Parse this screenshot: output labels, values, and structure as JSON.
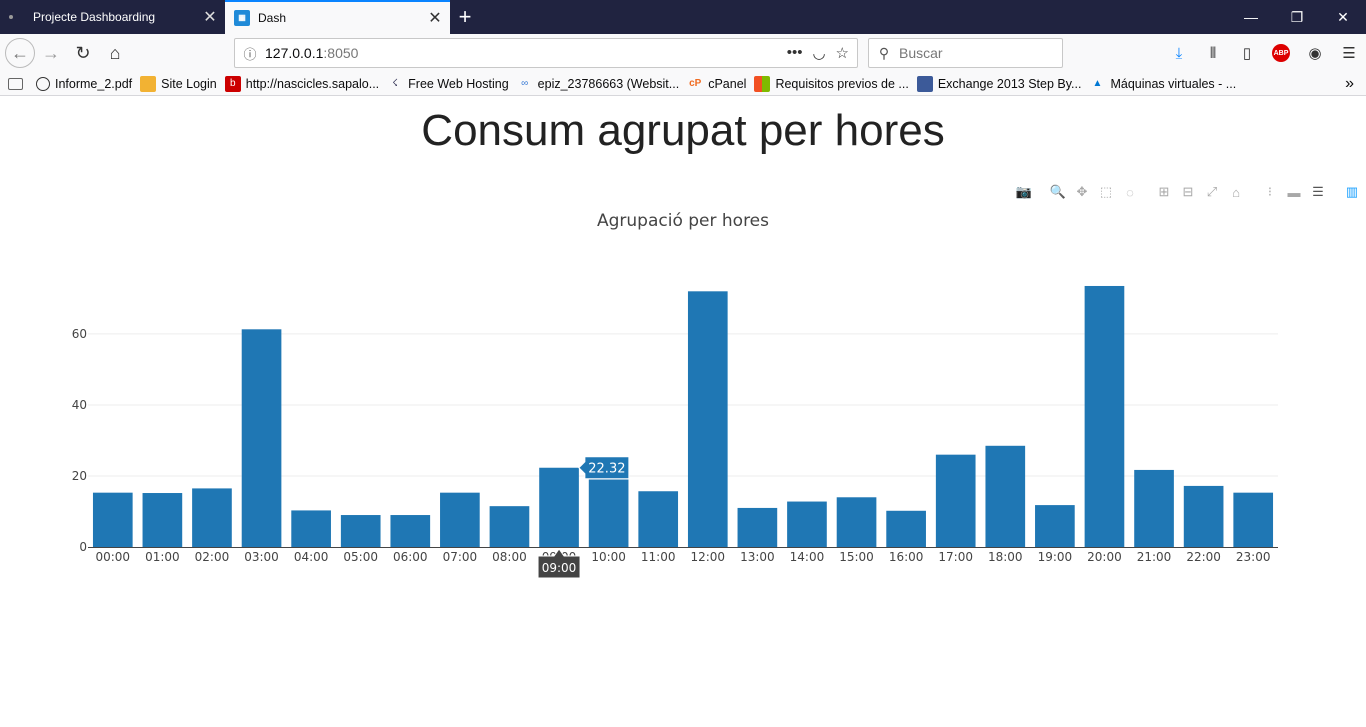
{
  "browser": {
    "tabs": [
      {
        "label": "Projecte Dashboarding",
        "active": false
      },
      {
        "label": "Dash",
        "active": true
      }
    ],
    "url_host": "127.0.0.1",
    "url_port": ":8050",
    "search_placeholder": "Buscar",
    "bookmarks": [
      {
        "label": "Informe_2.pdf",
        "icon": "globe-icon"
      },
      {
        "label": "Site Login",
        "icon": "box-icon"
      },
      {
        "label": "http://nascicles.sapalo...",
        "icon": "red-b-icon"
      },
      {
        "label": "Free Web Hosting",
        "icon": "hosting-icon"
      },
      {
        "label": "epiz_23786663 (Websit...",
        "icon": "infinity-icon"
      },
      {
        "label": "cPanel",
        "icon": "cpanel-icon"
      },
      {
        "label": "Requisitos previos de ...",
        "icon": "windows-icon"
      },
      {
        "label": "Exchange 2013 Step By...",
        "icon": "exchange-icon"
      },
      {
        "label": "Máquinas virtuales - ...",
        "icon": "azure-icon"
      }
    ]
  },
  "page": {
    "title": "Consum agrupat per hores"
  },
  "chart_data": {
    "type": "bar",
    "title": "Agrupació per hores",
    "categories": [
      "00:00",
      "01:00",
      "02:00",
      "03:00",
      "04:00",
      "05:00",
      "06:00",
      "07:00",
      "08:00",
      "09:00",
      "10:00",
      "11:00",
      "12:00",
      "13:00",
      "14:00",
      "15:00",
      "16:00",
      "17:00",
      "18:00",
      "19:00",
      "20:00",
      "21:00",
      "22:00",
      "23:00"
    ],
    "values": [
      15.3,
      15.2,
      16.5,
      61.3,
      10.3,
      9.0,
      9.0,
      15.3,
      11.5,
      22.32,
      19.0,
      15.7,
      72.0,
      11.0,
      12.8,
      14.0,
      10.2,
      26.0,
      28.5,
      11.8,
      73.5,
      21.7,
      17.2,
      15.3
    ],
    "ylim": [
      0,
      78
    ],
    "yticks": [
      0,
      20,
      40,
      60
    ],
    "bar_color": "#1f77b4",
    "grid": true,
    "hover": {
      "category": "09:00",
      "value": "22.32"
    }
  }
}
